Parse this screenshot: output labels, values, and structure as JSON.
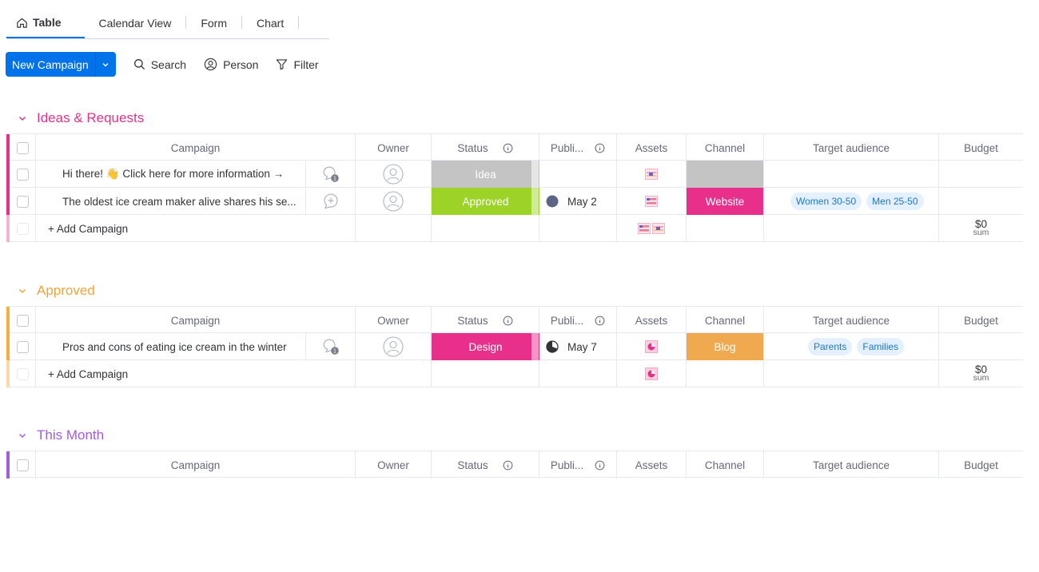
{
  "tabs": [
    {
      "label": "Table",
      "icon": "home-icon",
      "active": true
    },
    {
      "label": "Calendar View",
      "active": false
    },
    {
      "label": "Form",
      "active": false
    },
    {
      "label": "Chart",
      "active": false
    }
  ],
  "toolbar": {
    "new_label": "New Campaign",
    "search_label": "Search",
    "person_label": "Person",
    "filter_label": "Filter"
  },
  "colors": {
    "accent": "#0073ea",
    "ideas": "#e2445c",
    "ideas_title": "#e8308a",
    "approved": "#fdab3d",
    "approved_title": "#f2a33a",
    "this_month": "#a25ddc",
    "status_idea": "#c4c4c4",
    "status_approved": "#9cd326",
    "status_design": "#e8308a",
    "channel_website": "#e8308a",
    "channel_blog": "#f0a94f"
  },
  "columns": {
    "campaign": "Campaign",
    "owner": "Owner",
    "status": "Status",
    "publish": "Publi...",
    "assets": "Assets",
    "channel": "Channel",
    "target": "Target audience",
    "budget": "Budget"
  },
  "groups": [
    {
      "title": "Ideas & Requests",
      "items": [
        {
          "name": "Hi there! 👋 Click here for more information →",
          "updates": "1",
          "status": "Idea",
          "date": "",
          "channel": "",
          "audience": []
        },
        {
          "name": "The oldest ice cream maker alive shares his se...",
          "updates": "",
          "status": "Approved",
          "date": "May 2",
          "channel": "Website",
          "audience": [
            "Women 30-50",
            "Men 25-50"
          ]
        }
      ],
      "add_label": "+ Add Campaign",
      "budget_sum": "$0",
      "sum_label": "sum"
    },
    {
      "title": "Approved",
      "items": [
        {
          "name": "Pros and cons of eating ice cream in the winter",
          "updates": "1",
          "status": "Design",
          "date": "May 7",
          "channel": "Blog",
          "audience": [
            "Parents",
            "Families"
          ]
        }
      ],
      "add_label": "+ Add Campaign",
      "budget_sum": "$0",
      "sum_label": "sum"
    },
    {
      "title": "This Month",
      "items": []
    }
  ]
}
